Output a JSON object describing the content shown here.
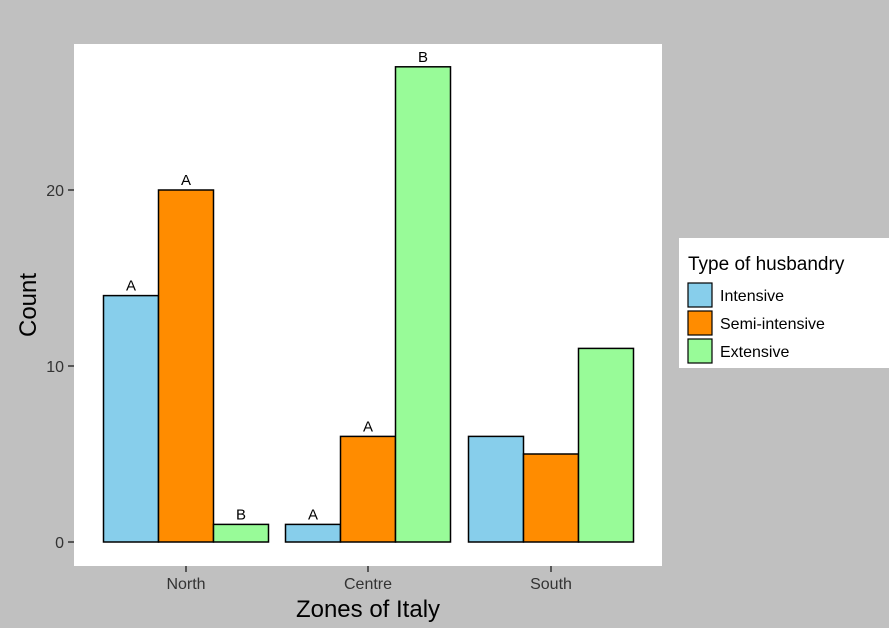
{
  "chart_data": {
    "type": "bar",
    "xlabel": "Zones of Italy",
    "ylabel": "Count",
    "categories": [
      "North",
      "Centre",
      "South"
    ],
    "yticks": [
      0,
      10,
      20
    ],
    "ylim": [
      0,
      27.9
    ],
    "grid": false,
    "legend": {
      "title": "Type of husbandry",
      "placement": "right"
    },
    "series": [
      {
        "name": "Intensive",
        "color": "#87ceeb",
        "values": [
          14,
          1,
          6
        ],
        "labels": [
          "A",
          "A",
          ""
        ]
      },
      {
        "name": "Semi-intensive",
        "color": "#ff8c00",
        "values": [
          20,
          6,
          5
        ],
        "labels": [
          "A",
          "A",
          ""
        ]
      },
      {
        "name": "Extensive",
        "color": "#98fb98",
        "values": [
          1,
          27,
          11
        ],
        "labels": [
          "B",
          "B",
          ""
        ]
      }
    ]
  }
}
